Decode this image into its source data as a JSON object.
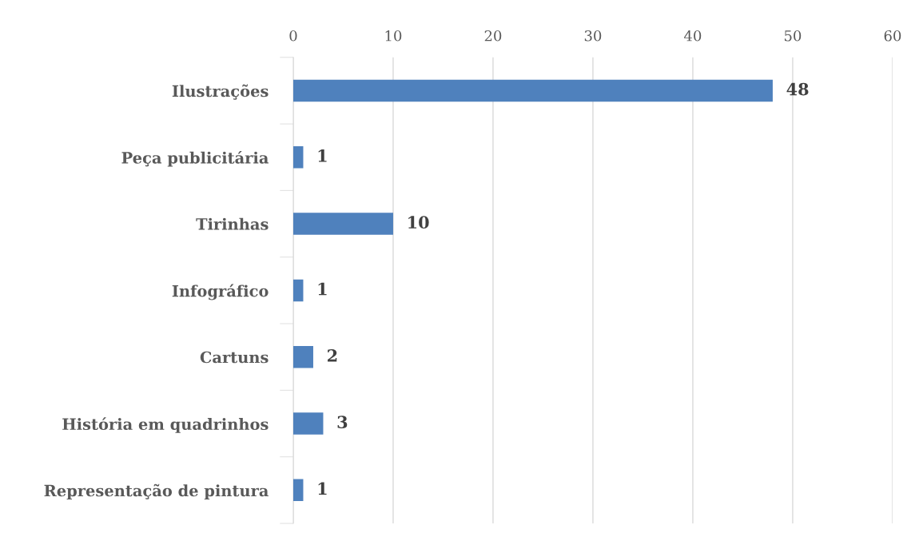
{
  "chart_data": {
    "type": "bar",
    "orientation": "horizontal",
    "categories": [
      "Ilustrações",
      "Peça publicitária",
      "Tirinhas",
      "Infográfico",
      "Cartuns",
      "História em quadrinhos",
      "Representação de pintura"
    ],
    "values": [
      48,
      1,
      10,
      1,
      2,
      3,
      1
    ],
    "color": "#4f81bd",
    "xlim": [
      0,
      60
    ],
    "xticks": [
      0,
      10,
      20,
      30,
      40,
      50,
      60
    ],
    "grid": "x",
    "data_labels": true
  }
}
